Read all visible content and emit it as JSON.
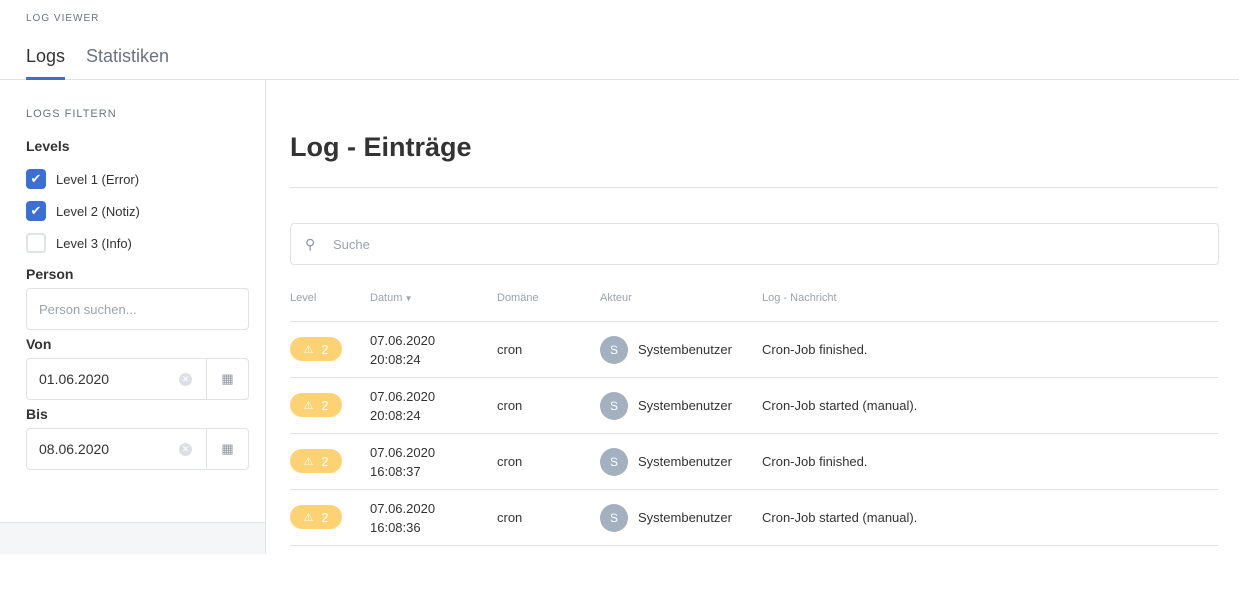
{
  "header": {
    "app_title": "LOG VIEWER",
    "tabs": [
      {
        "label": "Logs",
        "active": true
      },
      {
        "label": "Statistiken",
        "active": false
      }
    ]
  },
  "sidebar": {
    "title": "LOGS FILTERN",
    "levels_label": "Levels",
    "levels": [
      {
        "label": "Level 1 (Error)",
        "checked": true
      },
      {
        "label": "Level 2 (Notiz)",
        "checked": true
      },
      {
        "label": "Level 3 (Info)",
        "checked": false
      }
    ],
    "person_label": "Person",
    "person_placeholder": "Person suchen...",
    "von_label": "Von",
    "von_value": "01.06.2020",
    "bis_label": "Bis",
    "bis_value": "08.06.2020"
  },
  "main": {
    "title": "Log - Einträge",
    "search_placeholder": "Suche",
    "columns": [
      "Level",
      "Datum",
      "Domäne",
      "Akteur",
      "Log - Nachricht"
    ],
    "sort_column": "Datum",
    "sort_direction": "desc",
    "rows": [
      {
        "level": "2",
        "date": "07.06.2020",
        "time": "20:08:24",
        "domain": "cron",
        "avatar": "S",
        "actor": "Systembenutzer",
        "message": "Cron-Job finished."
      },
      {
        "level": "2",
        "date": "07.06.2020",
        "time": "20:08:24",
        "domain": "cron",
        "avatar": "S",
        "actor": "Systembenutzer",
        "message": "Cron-Job started (manual)."
      },
      {
        "level": "2",
        "date": "07.06.2020",
        "time": "16:08:37",
        "domain": "cron",
        "avatar": "S",
        "actor": "Systembenutzer",
        "message": "Cron-Job finished."
      },
      {
        "level": "2",
        "date": "07.06.2020",
        "time": "16:08:36",
        "domain": "cron",
        "avatar": "S",
        "actor": "Systembenutzer",
        "message": "Cron-Job started (manual)."
      }
    ]
  },
  "colors": {
    "accent": "#3b6fd1",
    "warning_badge": "#fdd274",
    "avatar": "#a3b0bf"
  }
}
